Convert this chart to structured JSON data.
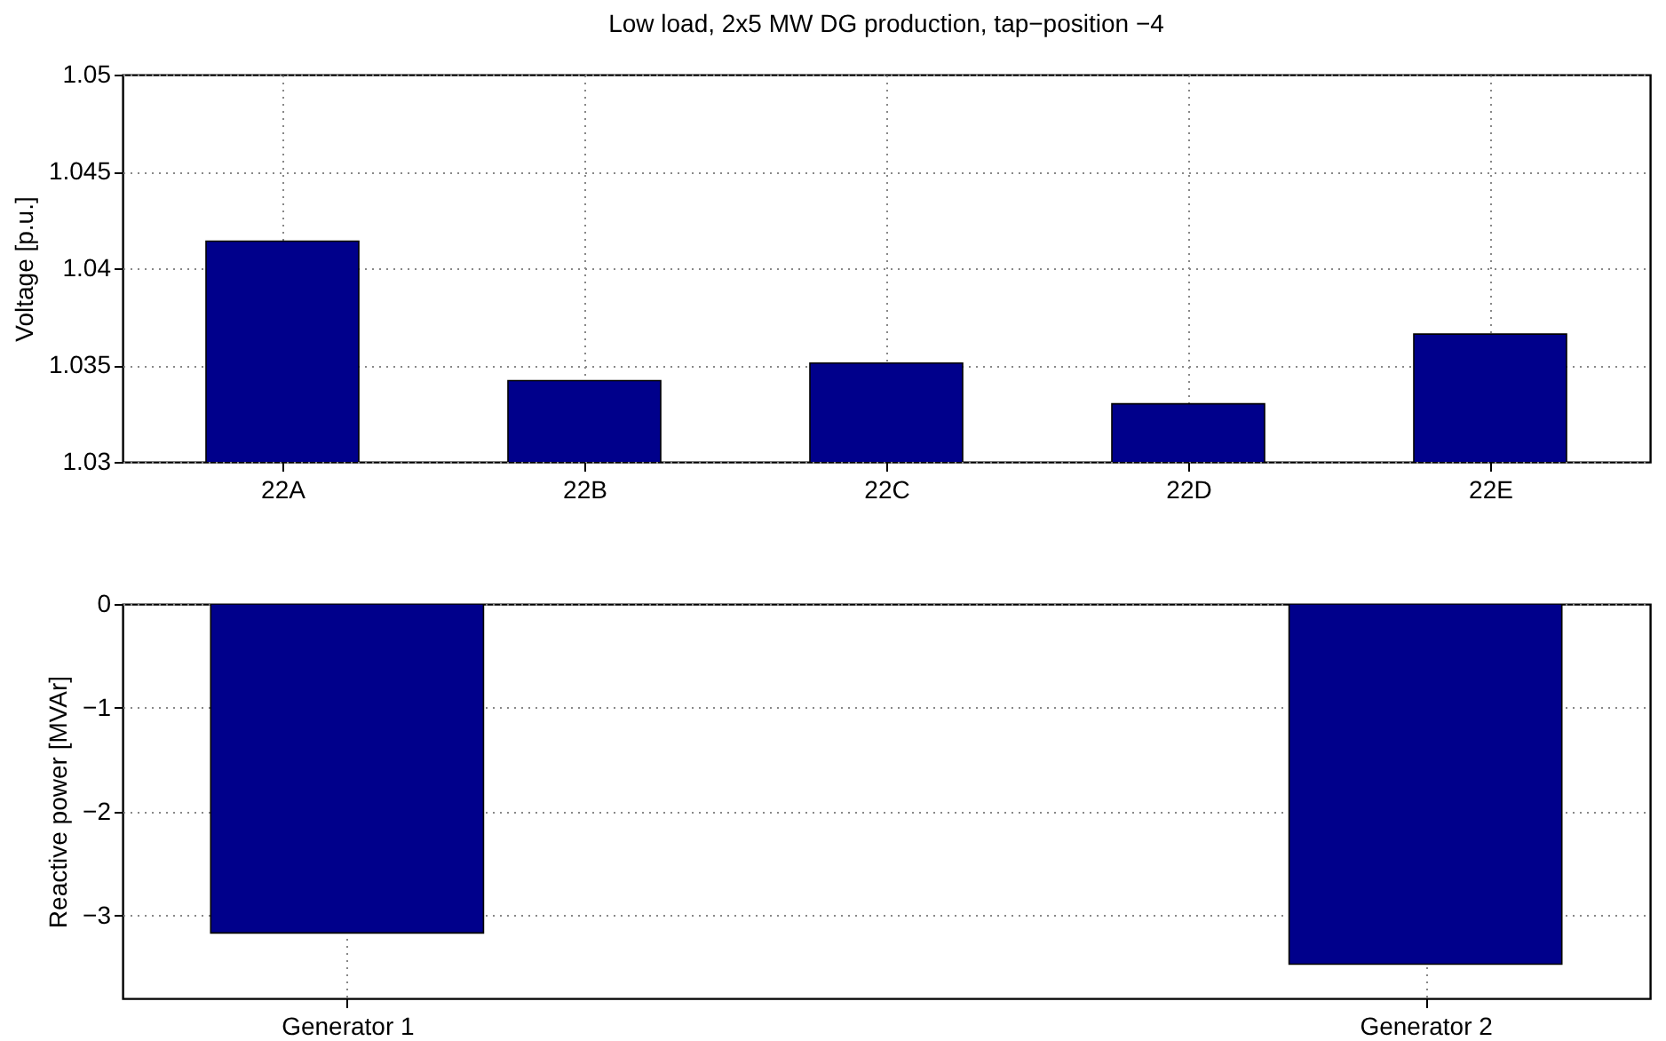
{
  "chart_data": [
    {
      "type": "bar",
      "title": "Low load, 2x5 MW DG production, tap−position −4",
      "ylabel": "Voltage [p.u.]",
      "categories": [
        "22A",
        "22B",
        "22C",
        "22D",
        "22E"
      ],
      "values": [
        1.0414,
        1.0342,
        1.0351,
        1.033,
        1.0366
      ],
      "color": "#00008b",
      "ylim": [
        1.03,
        1.05
      ],
      "yticks": [
        1.03,
        1.035,
        1.04,
        1.045,
        1.05
      ],
      "grid": true
    },
    {
      "type": "bar",
      "ylabel": "Reactive power [MVAr]",
      "categories": [
        "Generator 1",
        "Generator 2"
      ],
      "values": [
        -3.17,
        -3.47
      ],
      "color": "#00008b",
      "ylim": [
        -3.8,
        0
      ],
      "yticks": [
        {
          "value": 0,
          "label": "0"
        },
        {
          "value": -1,
          "label": "−1"
        },
        {
          "value": -2,
          "label": "−2"
        },
        {
          "value": -3,
          "label": "−3"
        }
      ],
      "grid": true
    }
  ]
}
